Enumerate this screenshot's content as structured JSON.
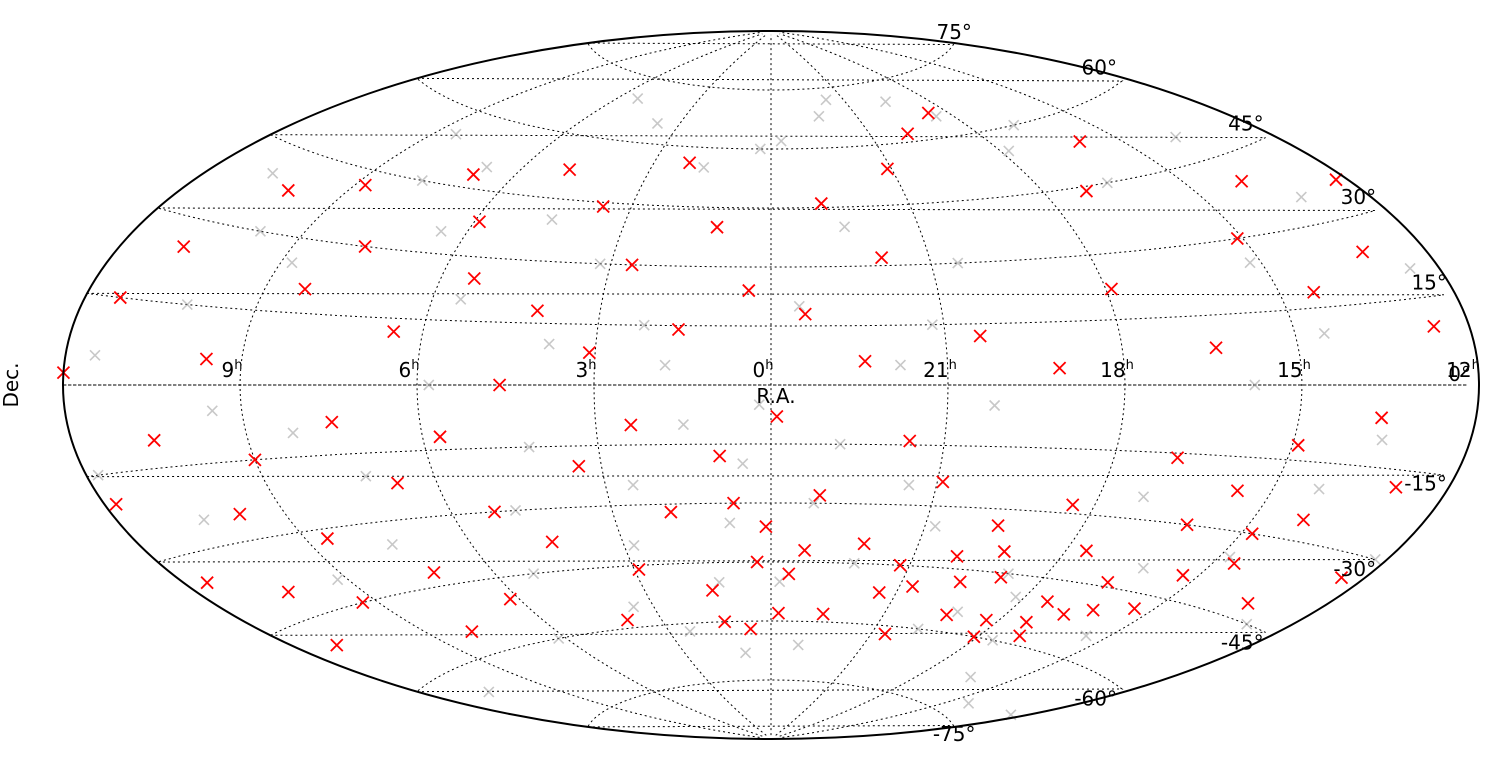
{
  "chart_data": {
    "type": "scatter",
    "projection": "aitoff",
    "title": "",
    "xlabel": "R.A.",
    "ylabel": "Dec.",
    "ra_tick_labels": [
      {
        "ra_hours": 9,
        "label": "9",
        "sup": "h"
      },
      {
        "ra_hours": 6,
        "label": "6",
        "sup": "h"
      },
      {
        "ra_hours": 3,
        "label": "3",
        "sup": "h"
      },
      {
        "ra_hours": 0,
        "label": "0",
        "sup": "h"
      },
      {
        "ra_hours": 21,
        "label": "21",
        "sup": "h"
      },
      {
        "ra_hours": 18,
        "label": "18",
        "sup": "h"
      },
      {
        "ra_hours": 15,
        "label": "15",
        "sup": "h"
      },
      {
        "ra_hours": 12,
        "label": "12",
        "sup": "h"
      }
    ],
    "dec_tick_labels": [
      {
        "dec": 75,
        "label": "75°"
      },
      {
        "dec": 60,
        "label": "60°"
      },
      {
        "dec": 45,
        "label": "45°"
      },
      {
        "dec": 30,
        "label": "30°"
      },
      {
        "dec": 15,
        "label": "15°"
      },
      {
        "dec": 0,
        "label": "0°"
      },
      {
        "dec": -15,
        "label": "-15°"
      },
      {
        "dec": -30,
        "label": "-30°"
      },
      {
        "dec": -45,
        "label": "-45°"
      },
      {
        "dec": -60,
        "label": "-60°"
      },
      {
        "dec": -75,
        "label": "-75°"
      }
    ],
    "grid": true,
    "series": [
      {
        "marker": "x",
        "color": "#9a9a9a",
        "points": [
          [
            0.2,
            -5
          ],
          [
            0.5,
            -20
          ],
          [
            0.8,
            -35
          ],
          [
            1.2,
            -50
          ],
          [
            1.5,
            -10
          ],
          [
            1.8,
            5
          ],
          [
            2.2,
            15
          ],
          [
            2.5,
            -25
          ],
          [
            2.8,
            -40
          ],
          [
            3.2,
            30
          ],
          [
            3.5,
            -55
          ],
          [
            3.8,
            10
          ],
          [
            4.2,
            -15
          ],
          [
            4.5,
            40
          ],
          [
            4.8,
            -30
          ],
          [
            5.2,
            -45
          ],
          [
            5.5,
            20
          ],
          [
            5.8,
            0
          ],
          [
            6.2,
            -60
          ],
          [
            6.5,
            35
          ],
          [
            6.8,
            50
          ],
          [
            7.2,
            -20
          ],
          [
            7.5,
            -35
          ],
          [
            7.8,
            45
          ],
          [
            8.2,
            -10
          ],
          [
            8.5,
            55
          ],
          [
            8.8,
            25
          ],
          [
            9.2,
            -40
          ],
          [
            9.5,
            -5
          ],
          [
            9.8,
            30
          ],
          [
            10.2,
            15
          ],
          [
            10.5,
            -25
          ],
          [
            10.8,
            40
          ],
          [
            11.2,
            -50
          ],
          [
            11.5,
            5
          ],
          [
            11.8,
            -15
          ],
          [
            12.2,
            -30
          ],
          [
            12.5,
            20
          ],
          [
            12.8,
            -45
          ],
          [
            13.2,
            35
          ],
          [
            13.5,
            -10
          ],
          [
            13.8,
            50
          ],
          [
            14.2,
            -20
          ],
          [
            14.5,
            10
          ],
          [
            14.8,
            -35
          ],
          [
            15.2,
            25
          ],
          [
            15.5,
            -55
          ],
          [
            15.8,
            0
          ],
          [
            16.2,
            -40
          ],
          [
            16.5,
            45
          ],
          [
            16.8,
            60
          ],
          [
            17.2,
            -25
          ],
          [
            17.5,
            -60
          ],
          [
            17.8,
            55
          ],
          [
            18.2,
            -50
          ],
          [
            18.5,
            65
          ],
          [
            18.8,
            -45
          ],
          [
            19.2,
            -55
          ],
          [
            19.5,
            70
          ],
          [
            19.8,
            -60
          ],
          [
            20.2,
            -5
          ],
          [
            20.5,
            30
          ],
          [
            20.8,
            -35
          ],
          [
            21.2,
            15
          ],
          [
            21.5,
            -25
          ],
          [
            21.8,
            5
          ],
          [
            22.2,
            -45
          ],
          [
            22.5,
            40
          ],
          [
            22.8,
            -15
          ],
          [
            23.2,
            -30
          ],
          [
            23.5,
            20
          ],
          [
            23.8,
            -50
          ],
          [
            0.3,
            60
          ],
          [
            1.7,
            55
          ],
          [
            3.7,
            65
          ],
          [
            5.3,
            70
          ],
          [
            23.7,
            62
          ],
          [
            22.3,
            68
          ],
          [
            21.7,
            72
          ],
          [
            10.7,
            -65
          ],
          [
            12.3,
            -70
          ],
          [
            14.3,
            -72
          ],
          [
            0.9,
            -68
          ],
          [
            2.4,
            -62
          ],
          [
            23.1,
            -66
          ],
          [
            16.3,
            -68
          ]
        ]
      },
      {
        "marker": "x",
        "color": "#ff0000",
        "points": [
          [
            12.0,
            2
          ],
          [
            11.8,
            -20
          ],
          [
            11.6,
            -35
          ],
          [
            11.4,
            15
          ],
          [
            11.2,
            -50
          ],
          [
            10.9,
            25
          ],
          [
            10.6,
            -10
          ],
          [
            10.4,
            -40
          ],
          [
            10.1,
            38
          ],
          [
            9.8,
            -25
          ],
          [
            9.6,
            5
          ],
          [
            9.3,
            -45
          ],
          [
            9.0,
            -15
          ],
          [
            8.8,
            42
          ],
          [
            8.6,
            -32
          ],
          [
            8.3,
            20
          ],
          [
            8.0,
            -55
          ],
          [
            7.7,
            30
          ],
          [
            7.5,
            -8
          ],
          [
            7.2,
            -42
          ],
          [
            6.9,
            48
          ],
          [
            6.7,
            -22
          ],
          [
            6.5,
            12
          ],
          [
            6.2,
            -50
          ],
          [
            5.9,
            38
          ],
          [
            5.7,
            -12
          ],
          [
            5.4,
            25
          ],
          [
            5.2,
            -30
          ],
          [
            4.9,
            52
          ],
          [
            4.6,
            0
          ],
          [
            4.4,
            -38
          ],
          [
            4.1,
            18
          ],
          [
            3.9,
            -58
          ],
          [
            3.6,
            44
          ],
          [
            3.4,
            -20
          ],
          [
            3.1,
            8
          ],
          [
            2.9,
            -46
          ],
          [
            2.6,
            30
          ],
          [
            2.4,
            -10
          ],
          [
            2.1,
            56
          ],
          [
            1.9,
            -32
          ],
          [
            1.6,
            14
          ],
          [
            1.4,
            -52
          ],
          [
            1.1,
            40
          ],
          [
            0.9,
            -18
          ],
          [
            0.6,
            -62
          ],
          [
            0.4,
            24
          ],
          [
            0.1,
            -36
          ],
          [
            23.9,
            -8
          ],
          [
            23.6,
            -48
          ],
          [
            23.4,
            18
          ],
          [
            23.1,
            -28
          ],
          [
            22.9,
            46
          ],
          [
            22.6,
            -58
          ],
          [
            22.4,
            6
          ],
          [
            22.1,
            -40
          ],
          [
            21.9,
            32
          ],
          [
            21.6,
            -14
          ],
          [
            21.4,
            -52
          ],
          [
            21.1,
            54
          ],
          [
            20.9,
            -24
          ],
          [
            20.6,
            -62
          ],
          [
            20.4,
            12
          ],
          [
            20.1,
            -42
          ],
          [
            19.9,
            62
          ],
          [
            19.6,
            -34
          ],
          [
            19.4,
            -56
          ],
          [
            19.1,
            4
          ],
          [
            18.9,
            -46
          ],
          [
            18.6,
            66
          ],
          [
            18.4,
            -28
          ],
          [
            18.1,
            -60
          ],
          [
            17.9,
            22
          ],
          [
            17.6,
            -38
          ],
          [
            17.4,
            -50
          ],
          [
            17.1,
            44
          ],
          [
            16.9,
            -16
          ],
          [
            16.6,
            -44
          ],
          [
            16.4,
            8
          ],
          [
            16.1,
            -30
          ],
          [
            15.9,
            54
          ],
          [
            15.6,
            -22
          ],
          [
            15.4,
            -48
          ],
          [
            15.1,
            30
          ],
          [
            14.9,
            -12
          ],
          [
            14.6,
            -36
          ],
          [
            14.4,
            18
          ],
          [
            14.1,
            -26
          ],
          [
            13.9,
            40
          ],
          [
            13.6,
            -6
          ],
          [
            13.4,
            -42
          ],
          [
            13.1,
            24
          ],
          [
            12.9,
            -18
          ],
          [
            12.6,
            10
          ],
          [
            12.4,
            -34
          ],
          [
            12.2,
            36
          ],
          [
            17.3,
            -55
          ],
          [
            17.0,
            -58
          ],
          [
            16.7,
            -52
          ],
          [
            18.3,
            -56
          ],
          [
            16.2,
            -50
          ],
          [
            0.3,
            -45
          ],
          [
            23.8,
            -58
          ],
          [
            1.3,
            -60
          ],
          [
            23.3,
            -42
          ],
          [
            0.7,
            -30
          ],
          [
            21.2,
            -45
          ],
          [
            20.7,
            -50
          ],
          [
            19.7,
            -48
          ],
          [
            19.2,
            -40
          ],
          [
            15.3,
            -40
          ],
          [
            14.8,
            -30
          ]
        ]
      }
    ]
  }
}
